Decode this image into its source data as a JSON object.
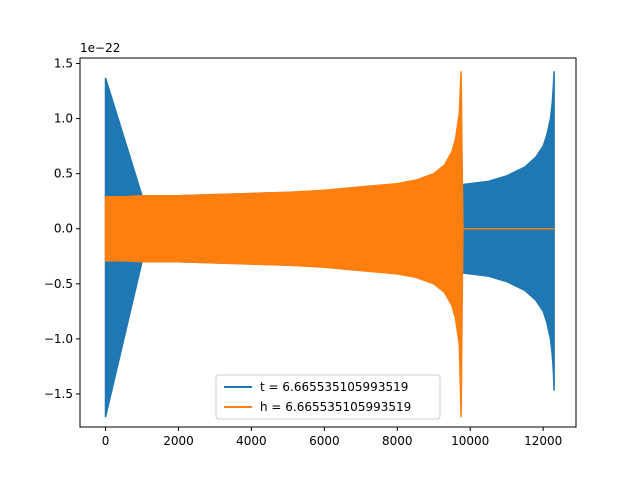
{
  "chart_data": {
    "type": "line",
    "offset_text": "1e−22",
    "xlim": [
      -700,
      12900
    ],
    "ylim": [
      -1.8,
      1.55
    ],
    "xticks": [
      {
        "value": 0,
        "label": "0"
      },
      {
        "value": 2000,
        "label": "2000"
      },
      {
        "value": 4000,
        "label": "4000"
      },
      {
        "value": 6000,
        "label": "6000"
      },
      {
        "value": 8000,
        "label": "8000"
      },
      {
        "value": 10000,
        "label": "10000"
      },
      {
        "value": 12000,
        "label": "12000"
      }
    ],
    "yticks": [
      {
        "value": -1.5,
        "label": "−1.5"
      },
      {
        "value": -1.0,
        "label": "−1.0"
      },
      {
        "value": -0.5,
        "label": "−0.5"
      },
      {
        "value": 0.0,
        "label": "0.0"
      },
      {
        "value": 0.5,
        "label": "0.5"
      },
      {
        "value": 1.0,
        "label": "1.0"
      },
      {
        "value": 1.5,
        "label": "1.5"
      }
    ],
    "grid": false,
    "legend_position": "lower center",
    "series": [
      {
        "name": "t = 6.665535105993519",
        "color": "#1f77b4",
        "x": [
          0,
          1000,
          2000,
          3000,
          4000,
          5000,
          6000,
          7000,
          8000,
          9000,
          9500,
          9750,
          10000,
          10500,
          11000,
          11500,
          11800,
          12000,
          12100,
          12200,
          12250,
          12280,
          12300
        ],
        "y_upper": [
          1.37,
          0.3,
          0.3,
          0.31,
          0.32,
          0.33,
          0.34,
          0.35,
          0.36,
          0.37,
          0.38,
          0.4,
          0.41,
          0.43,
          0.48,
          0.56,
          0.65,
          0.75,
          0.85,
          1.0,
          1.15,
          1.3,
          1.43
        ],
        "y_lower": [
          -1.71,
          -0.3,
          -0.3,
          -0.31,
          -0.32,
          -0.33,
          -0.34,
          -0.35,
          -0.36,
          -0.37,
          -0.38,
          -0.4,
          -0.41,
          -0.43,
          -0.48,
          -0.56,
          -0.65,
          -0.75,
          -0.85,
          -1.0,
          -1.15,
          -1.3,
          -1.47
        ]
      },
      {
        "name": "h = 6.665535105993519",
        "color": "#ff7f0e",
        "x": [
          0,
          500,
          1000,
          2000,
          3000,
          4000,
          5000,
          6000,
          7000,
          8000,
          8500,
          9000,
          9300,
          9500,
          9600,
          9700,
          9750,
          9800,
          12300
        ],
        "y_upper": [
          0.29,
          0.29,
          0.3,
          0.3,
          0.31,
          0.32,
          0.33,
          0.35,
          0.38,
          0.41,
          0.44,
          0.5,
          0.58,
          0.7,
          0.82,
          1.05,
          1.43,
          0.0,
          0.0
        ],
        "y_lower": [
          -0.29,
          -0.29,
          -0.3,
          -0.3,
          -0.31,
          -0.32,
          -0.33,
          -0.35,
          -0.38,
          -0.41,
          -0.44,
          -0.5,
          -0.58,
          -0.7,
          -0.82,
          -1.05,
          -1.71,
          0.0,
          0.0
        ]
      }
    ]
  }
}
